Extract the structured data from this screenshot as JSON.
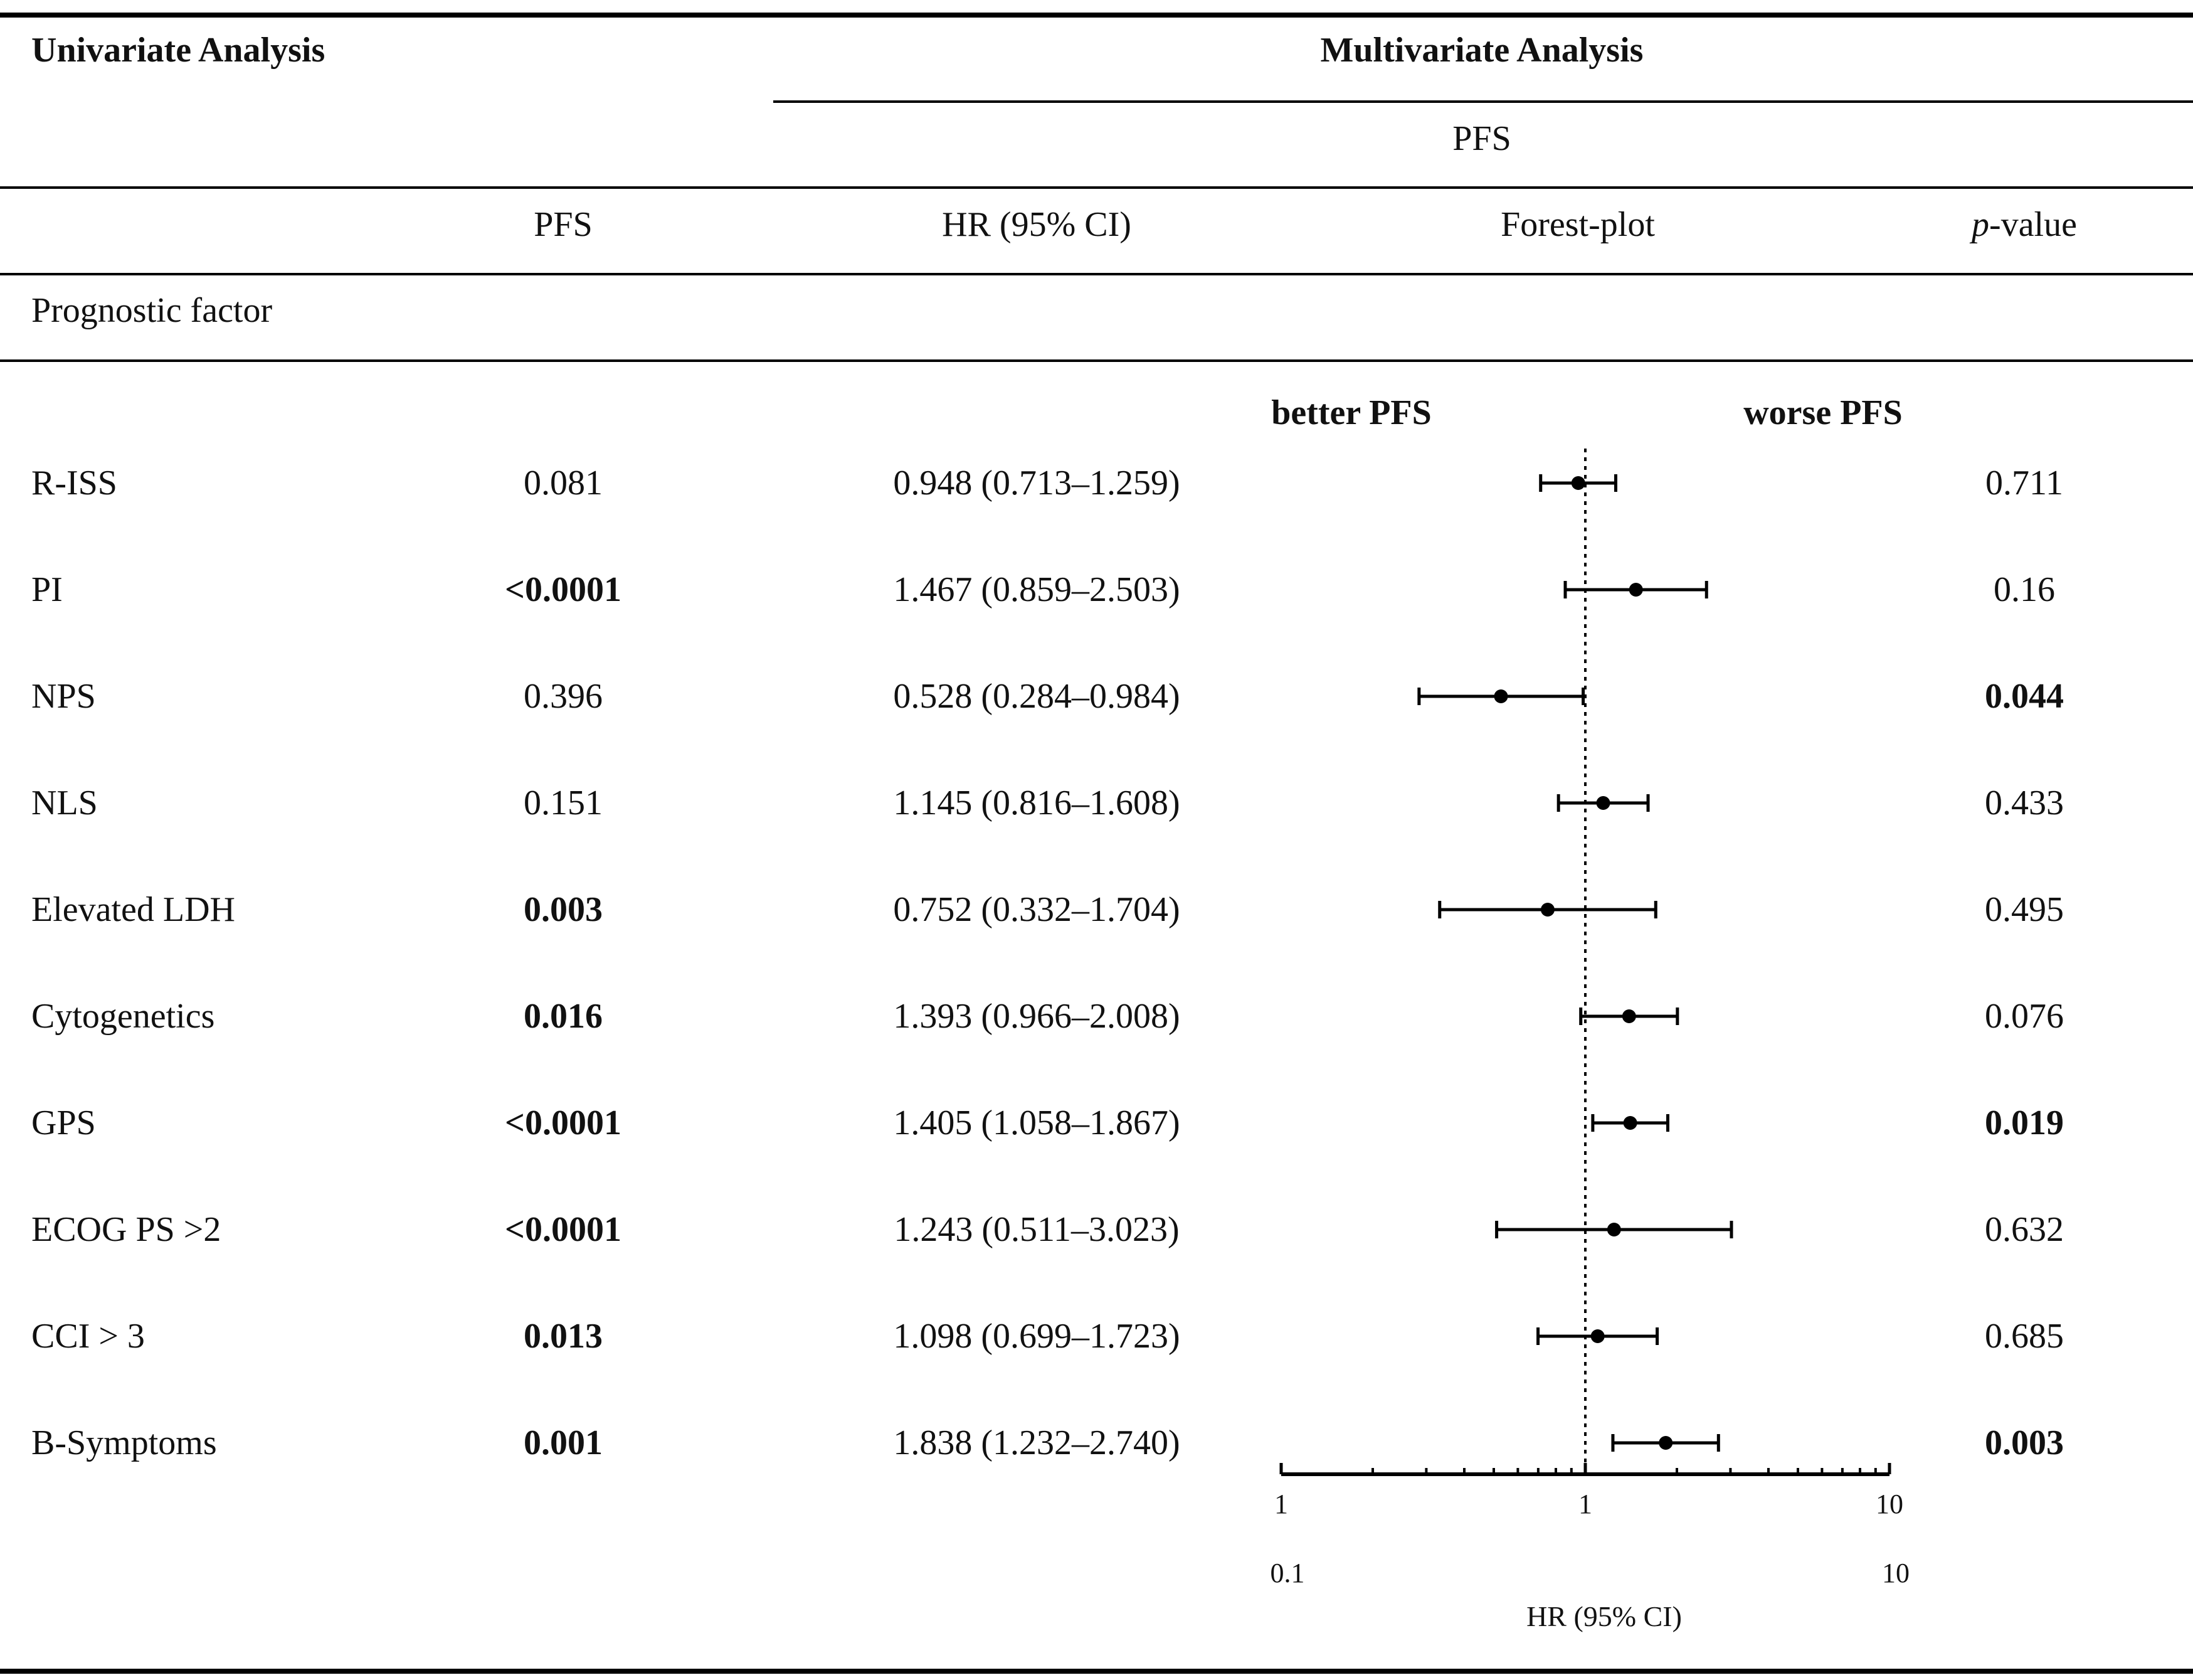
{
  "header": {
    "univariate": "Univariate Analysis",
    "multivariate": "Multivariate Analysis",
    "pfs_span": "PFS"
  },
  "columns": {
    "pfs": "PFS",
    "hr": "HR (95% CI)",
    "forest": "Forest-plot",
    "pvalue_p": "p",
    "pvalue_rest": "-value"
  },
  "section_label": "Prognostic factor",
  "forest_labels": {
    "better": "better PFS",
    "worse": "worse PFS"
  },
  "rows": [
    {
      "factor": "R-ISS",
      "pfs": "0.081",
      "pfs_bold": false,
      "hr_text": "0.948 (0.713–1.259)",
      "pvalue": "0.711",
      "p_bold": false
    },
    {
      "factor": "PI",
      "pfs": "<0.0001",
      "pfs_bold": true,
      "hr_text": "1.467 (0.859–2.503)",
      "pvalue": "0.16",
      "p_bold": false
    },
    {
      "factor": "NPS",
      "pfs": "0.396",
      "pfs_bold": false,
      "hr_text": "0.528 (0.284–0.984)",
      "pvalue": "0.044",
      "p_bold": true
    },
    {
      "factor": "NLS",
      "pfs": "0.151",
      "pfs_bold": false,
      "hr_text": "1.145 (0.816–1.608)",
      "pvalue": "0.433",
      "p_bold": false
    },
    {
      "factor": "Elevated LDH",
      "pfs": "0.003",
      "pfs_bold": true,
      "hr_text": "0.752 (0.332–1.704)",
      "pvalue": "0.495",
      "p_bold": false
    },
    {
      "factor": "Cytogenetics",
      "pfs": "0.016",
      "pfs_bold": true,
      "hr_text": "1.393 (0.966–2.008)",
      "pvalue": "0.076",
      "p_bold": false
    },
    {
      "factor": "GPS",
      "pfs": "<0.0001",
      "pfs_bold": true,
      "hr_text": "1.405 (1.058–1.867)",
      "pvalue": "0.019",
      "p_bold": true
    },
    {
      "factor": "ECOG PS >2",
      "pfs": "<0.0001",
      "pfs_bold": true,
      "hr_text": "1.243 (0.511–3.023)",
      "pvalue": "0.632",
      "p_bold": false
    },
    {
      "factor": "CCI > 3",
      "pfs": "0.013",
      "pfs_bold": true,
      "hr_text": "1.098 (0.699–1.723)",
      "pvalue": "0.685",
      "p_bold": false
    },
    {
      "factor": "B-Symptoms",
      "pfs": "0.001",
      "pfs_bold": true,
      "hr_text": "1.838 (1.232–2.740)",
      "pvalue": "0.003",
      "p_bold": true
    }
  ],
  "chart_data": {
    "type": "forest",
    "xscale": "log10",
    "xlim": [
      0.1,
      10
    ],
    "reference_line": 1,
    "axis_tick_labels": [
      "1",
      "1",
      "10"
    ],
    "axis_end_labels": [
      "0.1",
      "10"
    ],
    "xlabel": "HR (95% CI)",
    "series": [
      {
        "name": "R-ISS",
        "hr": 0.948,
        "lower": 0.713,
        "upper": 1.259
      },
      {
        "name": "PI",
        "hr": 1.467,
        "lower": 0.859,
        "upper": 2.503
      },
      {
        "name": "NPS",
        "hr": 0.528,
        "lower": 0.284,
        "upper": 0.984
      },
      {
        "name": "NLS",
        "hr": 1.145,
        "lower": 0.816,
        "upper": 1.608
      },
      {
        "name": "Elevated LDH",
        "hr": 0.752,
        "lower": 0.332,
        "upper": 1.704
      },
      {
        "name": "Cytogenetics",
        "hr": 1.393,
        "lower": 0.966,
        "upper": 2.008
      },
      {
        "name": "GPS",
        "hr": 1.405,
        "lower": 1.058,
        "upper": 1.867
      },
      {
        "name": "ECOG PS >2",
        "hr": 1.243,
        "lower": 0.511,
        "upper": 3.023
      },
      {
        "name": "CCI > 3",
        "hr": 1.098,
        "lower": 0.699,
        "upper": 1.723
      },
      {
        "name": "B-Symptoms",
        "hr": 1.838,
        "lower": 1.232,
        "upper": 2.74
      }
    ]
  }
}
